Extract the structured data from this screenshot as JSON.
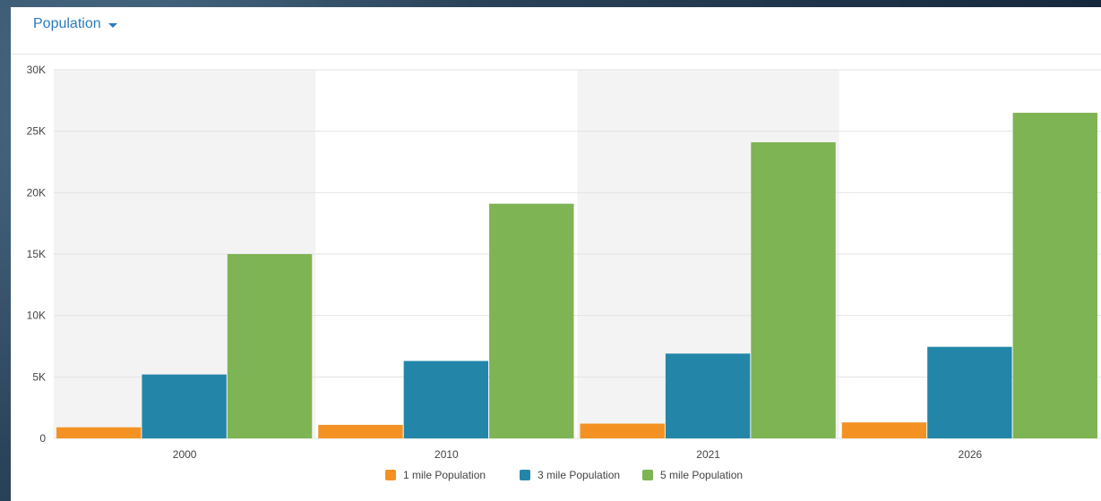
{
  "header": {
    "dropdown_label": "Population"
  },
  "chart_data": {
    "type": "bar",
    "categories": [
      "2000",
      "2010",
      "2021",
      "2026"
    ],
    "series": [
      {
        "name": "1 mile Population",
        "values": [
          900,
          1100,
          1200,
          1300
        ],
        "color": "#f39223"
      },
      {
        "name": "3 mile Population",
        "values": [
          5200,
          6300,
          6900,
          7450
        ],
        "color": "#2386a8"
      },
      {
        "name": "5 mile Population",
        "values": [
          15000,
          19100,
          24100,
          26500
        ],
        "color": "#7eb453"
      }
    ],
    "ylim": [
      0,
      30000
    ],
    "yticks": [
      0,
      5000,
      10000,
      15000,
      20000,
      25000,
      30000
    ],
    "ytick_labels": [
      "0",
      "5K",
      "10K",
      "15K",
      "20K",
      "25K",
      "30K"
    ],
    "legend_position": "bottom",
    "grid": true,
    "alternating_band_color": "#f3f3f3"
  }
}
